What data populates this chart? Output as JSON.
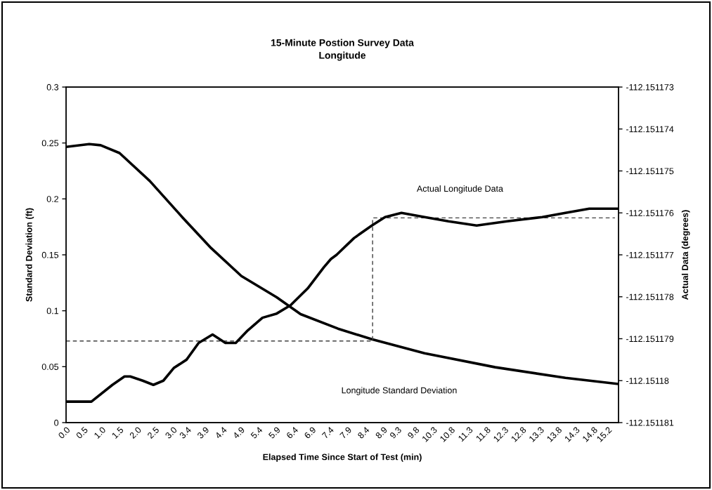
{
  "chart_data": {
    "type": "line",
    "title": "15-Minute Postion Survey Data",
    "subtitle": "Longitude",
    "xlabel": "Elapsed Time Since Start of Test (min)",
    "ylabel": "Standard Deviation (ft)",
    "y2label": "Actual Data (degrees)",
    "xlim": [
      0.0,
      15.5
    ],
    "xticks": [
      {
        "value": 0,
        "label": "0.0"
      },
      0.5,
      {
        "value": 1,
        "label": "1.0"
      },
      1.5,
      {
        "value": 2,
        "label": "2.0"
      },
      2.5,
      {
        "value": 3,
        "label": "3.0"
      },
      3.4,
      3.9,
      4.4,
      4.9,
      5.4,
      5.9,
      6.4,
      6.9,
      7.4,
      7.9,
      8.4,
      8.9,
      9.3,
      9.8,
      10.3,
      10.8,
      11.3,
      11.8,
      12.3,
      12.8,
      13.3,
      13.8,
      14.3,
      14.8,
      15.2
    ],
    "ylim": [
      0,
      0.3
    ],
    "yticks": [
      0,
      0.05,
      0.1,
      0.15,
      0.2,
      0.25,
      0.3
    ],
    "y2lim": [
      -112.151181,
      -112.151173
    ],
    "y2ticks": [
      -112.151181,
      -112.15118,
      -112.151179,
      -112.151178,
      -112.151177,
      -112.151176,
      -112.151175,
      -112.151174,
      -112.151173
    ],
    "grid": false,
    "marker": "none",
    "line_style": "solid",
    "series": [
      {
        "color": "#000000",
        "x": [
          0.0,
          0.65,
          0.97,
          1.5,
          2.35,
          3.28,
          4.07,
          4.92,
          5.91,
          6.58,
          7.63,
          8.58,
          10.06,
          12.04,
          14.01,
          15.5
        ],
        "values": [
          0.2465,
          0.249,
          0.248,
          0.241,
          0.216,
          0.183,
          0.156,
          0.131,
          0.112,
          0.097,
          0.084,
          0.0745,
          0.062,
          0.0495,
          0.04,
          0.0345
        ]
      },
      {
        "color": "#000000",
        "axis": "y2",
        "x": [
          0.0,
          0.38,
          0.71,
          1.3,
          1.64,
          1.8,
          2.15,
          2.45,
          2.73,
          3.02,
          3.38,
          3.72,
          4.11,
          4.47,
          4.76,
          5.1,
          5.51,
          5.91,
          6.3,
          6.78,
          7.23,
          7.43,
          7.59,
          8.08,
          8.58,
          8.95,
          9.41,
          10.06,
          10.73,
          11.52,
          12.37,
          13.36,
          14.01,
          14.68,
          15.5
        ],
        "values": [
          -112.1511805,
          -112.1511805,
          -112.1511805,
          -112.1511801,
          -112.1511799,
          -112.1511799,
          -112.15118,
          -112.1511801,
          -112.15118,
          -112.1511797,
          -112.1511795,
          -112.1511791,
          -112.1511789,
          -112.1511791,
          -112.1511791,
          -112.1511788,
          -112.1511785,
          -112.1511784,
          -112.1511782,
          -112.1511778,
          -112.1511773,
          -112.1511771,
          -112.151177,
          -112.1511766,
          -112.1511763,
          -112.1511761,
          -112.151176,
          -112.1511761,
          -112.1511762,
          -112.1511763,
          -112.1511762,
          -112.1511761,
          -112.151176,
          -112.1511759,
          -112.1511759
        ]
      },
      {
        "color": "#404040",
        "line_style": "dashed",
        "x": [
          0.0,
          8.6,
          8.6,
          15.4
        ],
        "values": [
          0.073,
          0.073,
          0.183,
          0.183
        ]
      }
    ],
    "annotations": [
      "Actual Longitude Data",
      "Longitude Standard Deviation"
    ]
  }
}
